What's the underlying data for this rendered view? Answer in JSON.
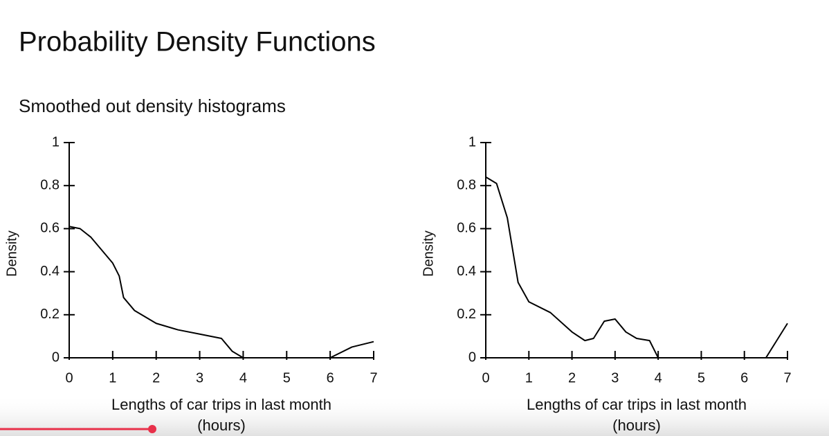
{
  "title": "Probability Density Functions",
  "subtitle": "Smoothed out density histograms",
  "chart_data": [
    {
      "type": "line",
      "xlabel": "Lengths of car trips in last month (hours)",
      "ylabel": "Density",
      "x": [
        0,
        0.25,
        0.5,
        0.75,
        1,
        1.15,
        1.25,
        1.5,
        2,
        2.5,
        3,
        3.5,
        3.75,
        4,
        5,
        6,
        6.5,
        7
      ],
      "values": [
        0.61,
        0.6,
        0.56,
        0.5,
        0.44,
        0.38,
        0.28,
        0.22,
        0.16,
        0.13,
        0.11,
        0.09,
        0.03,
        0,
        0,
        0,
        0.05,
        0.075
      ],
      "color": "#000000",
      "xlim": [
        0,
        7
      ],
      "ylim": [
        0,
        1
      ],
      "xticks": [
        0,
        1,
        2,
        3,
        4,
        5,
        6,
        7
      ],
      "yticks": [
        0,
        0.2,
        0.4,
        0.6,
        0.8,
        1
      ]
    },
    {
      "type": "line",
      "xlabel": "Lengths of car trips in last month (hours)",
      "ylabel": "Density",
      "x": [
        0,
        0.25,
        0.5,
        0.75,
        1,
        1.5,
        2,
        2.3,
        2.5,
        2.75,
        3,
        3.25,
        3.5,
        3.8,
        4,
        5,
        6,
        6.5,
        6.75,
        7
      ],
      "values": [
        0.84,
        0.81,
        0.65,
        0.35,
        0.26,
        0.21,
        0.12,
        0.08,
        0.09,
        0.17,
        0.18,
        0.12,
        0.09,
        0.08,
        0,
        0,
        0,
        0,
        0.08,
        0.16
      ],
      "color": "#000000",
      "xlim": [
        0,
        7
      ],
      "ylim": [
        0,
        1
      ],
      "xticks": [
        0,
        1,
        2,
        3,
        4,
        5,
        6,
        7
      ],
      "yticks": [
        0,
        0.2,
        0.4,
        0.6,
        0.8,
        1
      ]
    }
  ]
}
